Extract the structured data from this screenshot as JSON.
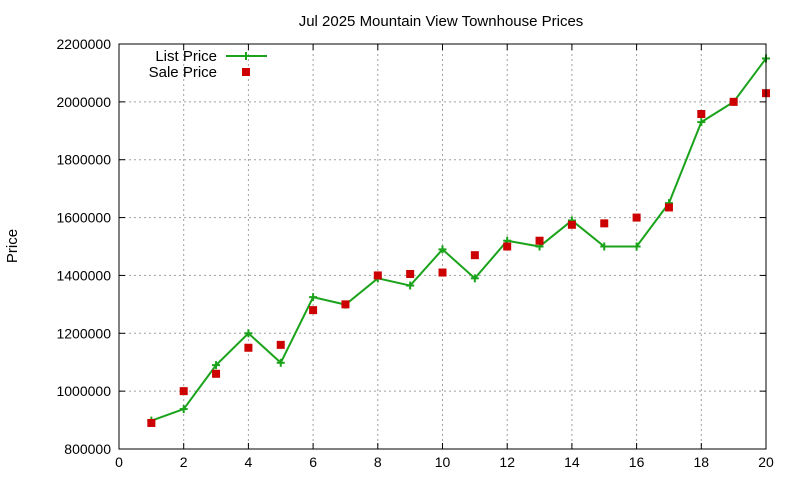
{
  "chart_data": {
    "type": "line",
    "title": "Jul 2025 Mountain View Townhouse Prices",
    "xlabel": "",
    "ylabel": "Price",
    "xlim": [
      0,
      20
    ],
    "ylim": [
      800000,
      2200000
    ],
    "xticks": [
      0,
      2,
      4,
      6,
      8,
      10,
      12,
      14,
      16,
      18,
      20
    ],
    "yticks": [
      800000,
      1000000,
      1200000,
      1400000,
      1600000,
      1800000,
      2000000,
      2200000
    ],
    "grid": true,
    "legend_position": "top-left",
    "series": [
      {
        "name": "List Price",
        "style": "line-with-plus-markers",
        "color": "#1aa31a",
        "x": [
          1,
          2,
          3,
          4,
          5,
          6,
          7,
          8,
          9,
          10,
          11,
          12,
          13,
          14,
          15,
          16,
          17,
          18,
          19,
          20
        ],
        "y": [
          898000,
          938000,
          1090000,
          1200000,
          1098000,
          1325000,
          1299000,
          1390000,
          1365000,
          1490000,
          1390000,
          1520000,
          1500000,
          1590000,
          1500000,
          1500000,
          1650000,
          1930000,
          2000000,
          2150000
        ]
      },
      {
        "name": "Sale Price",
        "style": "square-markers",
        "color": "#cc0000",
        "x": [
          1,
          2,
          3,
          4,
          5,
          6,
          7,
          8,
          9,
          10,
          11,
          12,
          13,
          14,
          15,
          16,
          17,
          18,
          19,
          20
        ],
        "y": [
          890000,
          1000000,
          1060000,
          1150000,
          1160000,
          1280000,
          1300000,
          1400000,
          1405000,
          1410000,
          1470000,
          1500000,
          1520000,
          1575000,
          1580000,
          1600000,
          1635000,
          1958000,
          2000000,
          2030000
        ]
      }
    ]
  }
}
